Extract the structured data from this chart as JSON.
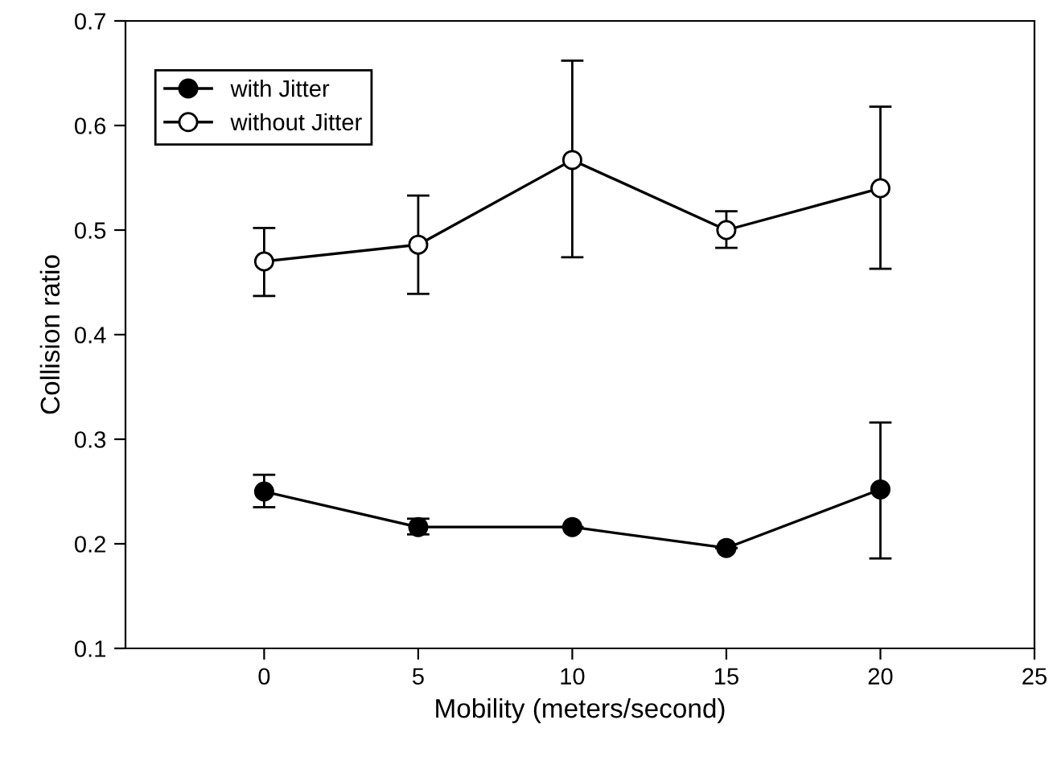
{
  "chart_data": {
    "type": "line",
    "xlabel": "Mobility (meters/second)",
    "ylabel": "Collision ratio",
    "x": [
      0,
      5,
      10,
      15,
      20
    ],
    "series": [
      {
        "name": "with Jitter",
        "color": "#000000",
        "values": [
          0.25,
          0.216,
          0.216,
          0.196,
          0.252
        ],
        "errors": [
          [
            0.235,
            0.266
          ],
          [
            0.209,
            0.224
          ],
          null,
          null,
          [
            0.186,
            0.316
          ]
        ]
      },
      {
        "name": "without Jitter",
        "color": "#ffffff",
        "values": [
          0.47,
          0.486,
          0.567,
          0.5,
          0.54
        ],
        "errors": [
          [
            0.437,
            0.502
          ],
          [
            0.439,
            0.533
          ],
          [
            0.474,
            0.662
          ],
          [
            0.483,
            0.518
          ],
          [
            0.463,
            0.618
          ]
        ]
      }
    ],
    "xlim": [
      -4.5,
      25
    ],
    "xticks": [
      0,
      5,
      10,
      15,
      20,
      25
    ],
    "ylim": [
      0.1,
      0.7
    ],
    "yticks": [
      {
        "value": 0.1,
        "label": "0.1"
      },
      {
        "value": 0.2,
        "label": "0.2"
      },
      {
        "value": 0.3,
        "label": "0.3"
      },
      {
        "value": 0.4,
        "label": "0.4"
      },
      {
        "value": 0.5,
        "label": "0.5"
      },
      {
        "value": 0.6,
        "label": "0.6"
      },
      {
        "value": 0.7,
        "label": "0.7"
      }
    ],
    "grid": false,
    "legend": "top left",
    "line_style": "solid",
    "marker": "circle"
  }
}
